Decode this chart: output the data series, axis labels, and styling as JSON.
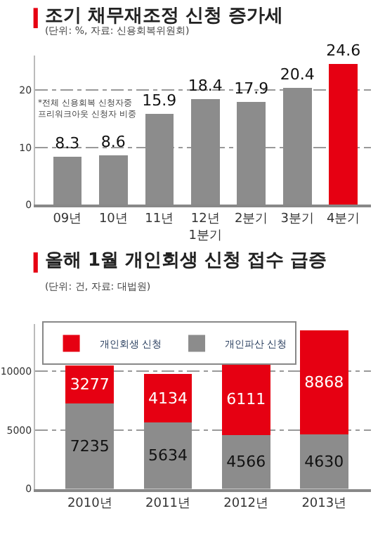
{
  "chart_data": [
    {
      "type": "bar",
      "title": "조기 채무재조정 신청 증가세",
      "subtitle": "(단위: %, 자료: 신용회복위원회)",
      "categories": [
        "09년",
        "10년",
        "11년",
        "12년\n1분기",
        "2분기",
        "3분기",
        "4분기"
      ],
      "values": [
        8.3,
        8.6,
        15.9,
        18.4,
        17.9,
        20.4,
        24.6
      ],
      "colors": [
        "#8c8c8c",
        "#8c8c8c",
        "#8c8c8c",
        "#8c8c8c",
        "#8c8c8c",
        "#8c8c8c",
        "#e60012"
      ],
      "ylim": [
        0,
        26
      ],
      "yticks": [
        0,
        10,
        20
      ],
      "grid": "y",
      "data_labels": true,
      "legend": false,
      "annotations": [
        "*전체 신용회복 신청자중\n프리워크아웃 신청자 비중"
      ]
    },
    {
      "type": "bar",
      "title": "올해 1월 개인회생 신청 접수 급증",
      "subtitle": "(단위: 건, 자료: 대법원)",
      "categories": [
        "2010년",
        "2011년",
        "2012년",
        "2013년"
      ],
      "stacked": true,
      "series": [
        {
          "name": "개인파산 신청",
          "color": "#8c8c8c",
          "values": [
            7235,
            5634,
            4566,
            4630
          ]
        },
        {
          "name": "개인회생 신청",
          "color": "#e60012",
          "values": [
            3277,
            4134,
            6111,
            8868
          ]
        }
      ],
      "ylim": [
        0,
        14000
      ],
      "yticks": [
        0,
        5000,
        10000
      ],
      "grid": "y",
      "data_labels": true,
      "legend": "top"
    }
  ]
}
